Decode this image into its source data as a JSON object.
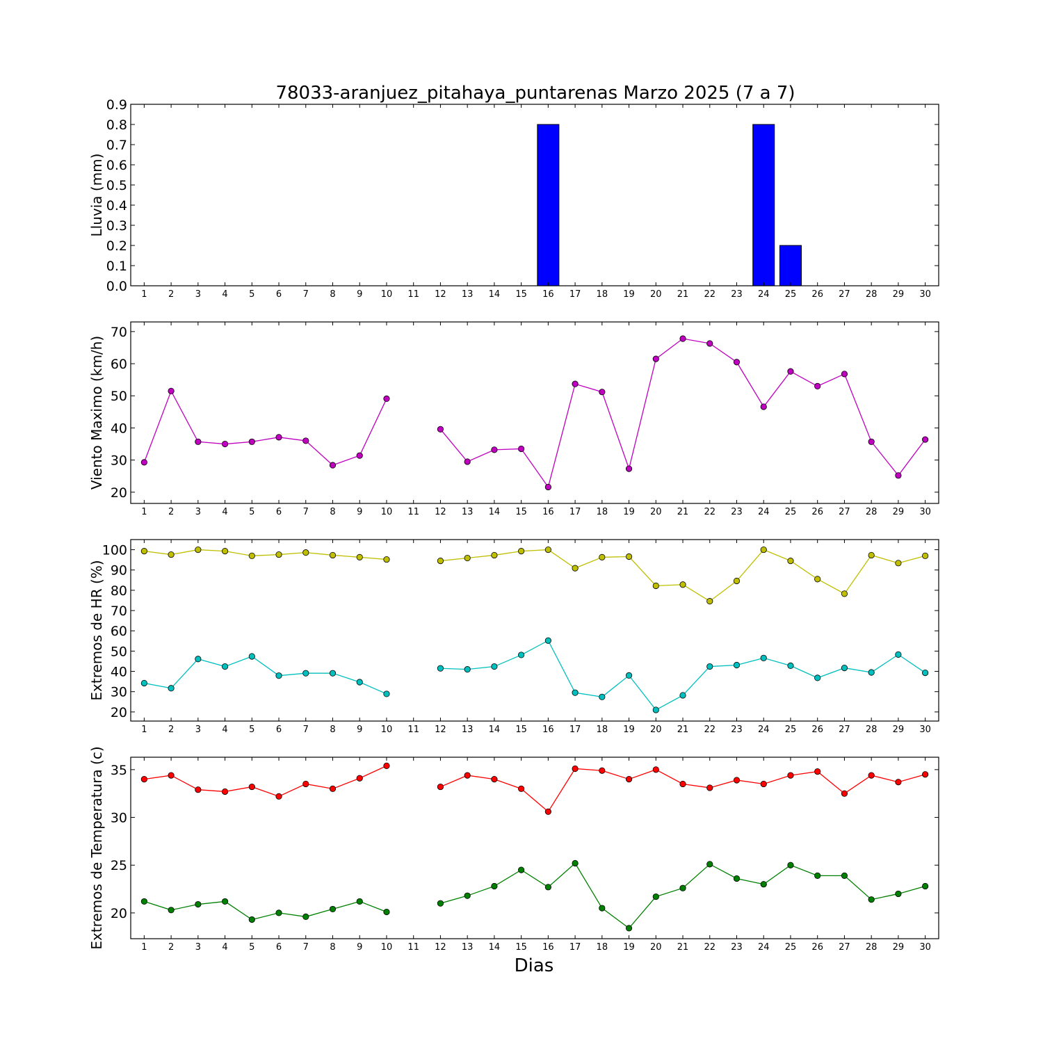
{
  "chart_data": [
    {
      "type": "bar",
      "title": "78033-aranjuez_pitahaya_puntarenas Marzo 2025  (7 a 7)",
      "ylabel": "Lluvia (mm)",
      "categories": [
        1,
        2,
        3,
        4,
        5,
        6,
        7,
        8,
        9,
        10,
        11,
        12,
        13,
        14,
        15,
        16,
        17,
        18,
        19,
        20,
        21,
        22,
        23,
        24,
        25,
        26,
        27,
        28,
        29,
        30
      ],
      "values": [
        0,
        0,
        0,
        0,
        0,
        0,
        0,
        0,
        0,
        0,
        0,
        0,
        0,
        0,
        0,
        0.8,
        0,
        0,
        0,
        0,
        0,
        0,
        0,
        0.8,
        0.2,
        0,
        0,
        0,
        0,
        0
      ],
      "ylim": [
        0,
        0.9
      ],
      "yticks": [
        0.0,
        0.1,
        0.2,
        0.3,
        0.4,
        0.5,
        0.6,
        0.7,
        0.8,
        0.9
      ],
      "yticklabels": [
        "0.0",
        "0.1",
        "0.2",
        "0.3",
        "0.4",
        "0.5",
        "0.6",
        "0.7",
        "0.8",
        "0.9"
      ],
      "color": "#0000ff"
    },
    {
      "type": "line",
      "ylabel": "Viento Maximo (km/h)",
      "x": [
        1,
        2,
        3,
        4,
        5,
        6,
        7,
        8,
        9,
        10,
        11,
        12,
        13,
        14,
        15,
        16,
        17,
        18,
        19,
        20,
        21,
        22,
        23,
        24,
        25,
        26,
        27,
        28,
        29,
        30
      ],
      "series": [
        {
          "values": [
            29.3,
            51.5,
            35.7,
            35.0,
            35.7,
            37.1,
            36.0,
            28.4,
            31.4,
            49.1,
            null,
            39.6,
            29.5,
            33.2,
            33.5,
            21.6,
            53.7,
            51.2,
            27.3,
            61.5,
            67.8,
            66.3,
            60.5,
            46.6,
            57.6,
            53.0,
            56.8,
            35.7,
            25.2,
            36.4
          ],
          "color": "#bf00bf"
        }
      ],
      "ylim": [
        16.5,
        73
      ],
      "yticks": [
        20,
        30,
        40,
        50,
        60,
        70
      ],
      "yticklabels": [
        "20",
        "30",
        "40",
        "50",
        "60",
        "70"
      ]
    },
    {
      "type": "line",
      "ylabel": "Extremos de HR (%)",
      "x": [
        1,
        2,
        3,
        4,
        5,
        6,
        7,
        8,
        9,
        10,
        11,
        12,
        13,
        14,
        15,
        16,
        17,
        18,
        19,
        20,
        21,
        22,
        23,
        24,
        25,
        26,
        27,
        28,
        29,
        30
      ],
      "series": [
        {
          "values": [
            99.3,
            97.6,
            100.0,
            99.3,
            97.0,
            97.6,
            98.6,
            97.3,
            96.3,
            95.2,
            null,
            94.5,
            95.9,
            97.3,
            99.3,
            100.0,
            90.9,
            96.3,
            96.6,
            82.2,
            82.8,
            74.6,
            84.6,
            100.0,
            94.5,
            85.5,
            78.3,
            97.3,
            93.4,
            97.0
          ],
          "color": "#bfbf00"
        },
        {
          "values": [
            34.2,
            31.7,
            46.1,
            42.4,
            47.4,
            37.9,
            39.1,
            39.1,
            34.7,
            28.9,
            null,
            41.5,
            41.0,
            42.4,
            48.1,
            55.2,
            29.5,
            27.4,
            38.0,
            21.0,
            28.2,
            42.4,
            43.1,
            46.6,
            42.8,
            36.8,
            41.7,
            39.5,
            48.3,
            39.3
          ],
          "color": "#00bfbf"
        }
      ],
      "ylim": [
        15.5,
        105
      ],
      "yticks": [
        20,
        30,
        40,
        50,
        60,
        70,
        80,
        90,
        100
      ],
      "yticklabels": [
        "20",
        "30",
        "40",
        "50",
        "60",
        "70",
        "80",
        "90",
        "100"
      ]
    },
    {
      "type": "line",
      "ylabel": "Extremos de Temperatura (c)",
      "xlabel": "Dias",
      "x": [
        1,
        2,
        3,
        4,
        5,
        6,
        7,
        8,
        9,
        10,
        11,
        12,
        13,
        14,
        15,
        16,
        17,
        18,
        19,
        20,
        21,
        22,
        23,
        24,
        25,
        26,
        27,
        28,
        29,
        30
      ],
      "series": [
        {
          "values": [
            34.0,
            34.4,
            32.9,
            32.7,
            33.2,
            32.2,
            33.5,
            33.0,
            34.1,
            35.4,
            null,
            33.2,
            34.4,
            34.0,
            33.0,
            30.6,
            35.1,
            34.9,
            34.0,
            35.0,
            33.5,
            33.1,
            33.9,
            33.5,
            34.4,
            34.8,
            32.5,
            34.4,
            33.7,
            34.5
          ],
          "color": "#ff0000"
        },
        {
          "values": [
            21.2,
            20.3,
            20.9,
            21.2,
            19.3,
            20.0,
            19.6,
            20.4,
            21.2,
            20.1,
            null,
            21.0,
            21.8,
            22.8,
            24.5,
            22.7,
            25.2,
            20.5,
            18.4,
            21.7,
            22.6,
            25.1,
            23.6,
            23.0,
            25.0,
            23.9,
            23.9,
            21.4,
            22.0,
            22.8
          ],
          "color": "#008000"
        }
      ],
      "ylim": [
        17.3,
        36.3
      ],
      "yticks": [
        20,
        25,
        30,
        35
      ],
      "yticklabels": [
        "20",
        "25",
        "30",
        "35"
      ]
    }
  ]
}
